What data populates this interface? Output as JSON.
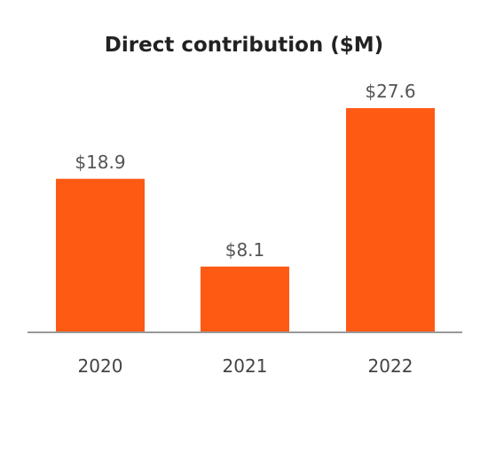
{
  "chart_data": {
    "type": "bar",
    "title": "Direct contribution ($M)",
    "categories": [
      "2020",
      "2021",
      "2022"
    ],
    "values": [
      18.9,
      8.1,
      27.6
    ],
    "value_labels": [
      "$18.9",
      "$8.1",
      "$27.6"
    ],
    "xlabel": "",
    "ylabel": "",
    "ylim": [
      0,
      27.6
    ],
    "grid": false,
    "legend": "none",
    "colors": {
      "bar": "#ff5a14",
      "baseline": "#999999"
    }
  }
}
